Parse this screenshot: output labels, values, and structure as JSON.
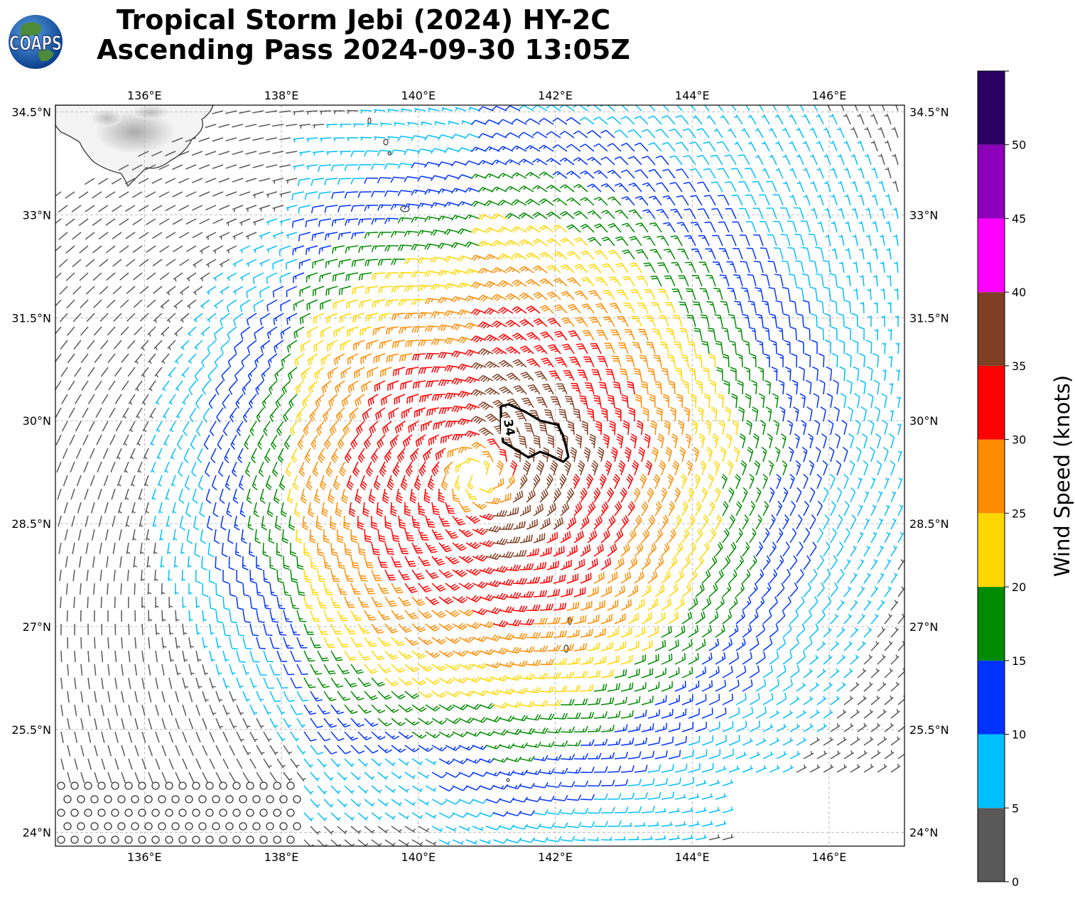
{
  "title": {
    "line1": "Tropical Storm Jebi (2024) HY-2C",
    "line2": "Ascending Pass 2024-09-30 13:05Z"
  },
  "logo": {
    "text": "COAPS",
    "icon": "globe-icon"
  },
  "map": {
    "lon_range": [
      134.7,
      147.1
    ],
    "lat_range": [
      23.8,
      34.6
    ],
    "lon_ticks": [
      136,
      138,
      140,
      142,
      144,
      146
    ],
    "lat_ticks": [
      24,
      25.5,
      27,
      28.5,
      30,
      31.5,
      33,
      34.5
    ],
    "lon_tick_labels": [
      "136°E",
      "138°E",
      "140°E",
      "142°E",
      "144°E",
      "146°E"
    ],
    "lat_tick_labels": [
      "24°N",
      "25.5°N",
      "27°N",
      "28.5°N",
      "30°N",
      "31.5°N",
      "33°N",
      "34.5°N"
    ],
    "grid": true,
    "storm_center": {
      "lon": 140.9,
      "lat": 29.2
    },
    "contour": {
      "label": "34",
      "color": "#000000"
    },
    "land": "Japan coastline top-left, small islands"
  },
  "colorbar": {
    "label": "Wind Speed (knots)",
    "tick_labels": [
      "0",
      "5",
      "10",
      "15",
      "20",
      "25",
      "30",
      "35",
      "40",
      "45",
      "50"
    ],
    "bins": [
      {
        "from": 0,
        "to": 5,
        "color": "#595959"
      },
      {
        "from": 5,
        "to": 10,
        "color": "#00bfff"
      },
      {
        "from": 10,
        "to": 15,
        "color": "#0033ff"
      },
      {
        "from": 15,
        "to": 20,
        "color": "#008b00"
      },
      {
        "from": 20,
        "to": 25,
        "color": "#ffd700"
      },
      {
        "from": 25,
        "to": 30,
        "color": "#ff8c00"
      },
      {
        "from": 30,
        "to": 35,
        "color": "#ff0000"
      },
      {
        "from": 35,
        "to": 40,
        "color": "#7f3f24"
      },
      {
        "from": 40,
        "to": 45,
        "color": "#ff00ff"
      },
      {
        "from": 45,
        "to": 50,
        "color": "#8b00b8"
      },
      {
        "from": 50,
        "to": 55,
        "color": "#2b0063"
      }
    ]
  }
}
